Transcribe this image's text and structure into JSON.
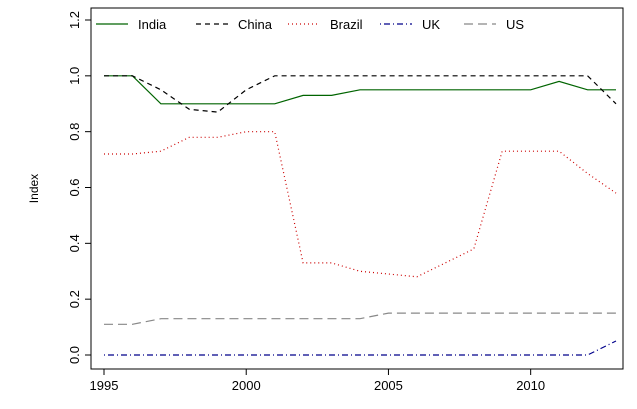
{
  "chart_data": {
    "type": "line",
    "title": "",
    "xlabel": "",
    "ylabel": "Index",
    "xlim": [
      1995,
      2013
    ],
    "ylim": [
      0,
      1.2
    ],
    "x_ticks": [
      "1995",
      "2000",
      "2005",
      "2010"
    ],
    "y_ticks": [
      "0.0",
      "0.2",
      "0.4",
      "0.6",
      "0.8",
      "1.0",
      "1.2"
    ],
    "legend_position": "top",
    "grid": false,
    "x": [
      1995,
      1996,
      1997,
      1998,
      1999,
      2000,
      2001,
      2002,
      2003,
      2004,
      2005,
      2006,
      2007,
      2008,
      2009,
      2010,
      2011,
      2012,
      2013
    ],
    "series": [
      {
        "name": "India",
        "color": "#006400",
        "dash": "solid",
        "values": [
          1.0,
          1.0,
          0.9,
          0.9,
          0.9,
          0.9,
          0.9,
          0.93,
          0.93,
          0.95,
          0.95,
          0.95,
          0.95,
          0.95,
          0.95,
          0.95,
          0.98,
          0.95,
          0.95
        ]
      },
      {
        "name": "China",
        "color": "#000000",
        "dash": "dashed",
        "values": [
          1.0,
          1.0,
          0.95,
          0.88,
          0.87,
          0.95,
          1.0,
          1.0,
          1.0,
          1.0,
          1.0,
          1.0,
          1.0,
          1.0,
          1.0,
          1.0,
          1.0,
          1.0,
          0.9
        ]
      },
      {
        "name": "Brazil",
        "color": "#cc0000",
        "dash": "dotted",
        "values": [
          0.72,
          0.72,
          0.73,
          0.78,
          0.78,
          0.8,
          0.8,
          0.33,
          0.33,
          0.3,
          0.29,
          0.28,
          0.33,
          0.38,
          0.73,
          0.73,
          0.73,
          0.65,
          0.58
        ]
      },
      {
        "name": "UK",
        "color": "#00008b",
        "dash": "dotdash",
        "values": [
          0.0,
          0.0,
          0.0,
          0.0,
          0.0,
          0.0,
          0.0,
          0.0,
          0.0,
          0.0,
          0.0,
          0.0,
          0.0,
          0.0,
          0.0,
          0.0,
          0.0,
          0.0,
          0.05
        ]
      },
      {
        "name": "US",
        "color": "#888888",
        "dash": "longdash",
        "values": [
          0.11,
          0.11,
          0.13,
          0.13,
          0.13,
          0.13,
          0.13,
          0.13,
          0.13,
          0.13,
          0.15,
          0.15,
          0.15,
          0.15,
          0.15,
          0.15,
          0.15,
          0.15,
          0.15
        ]
      }
    ]
  }
}
